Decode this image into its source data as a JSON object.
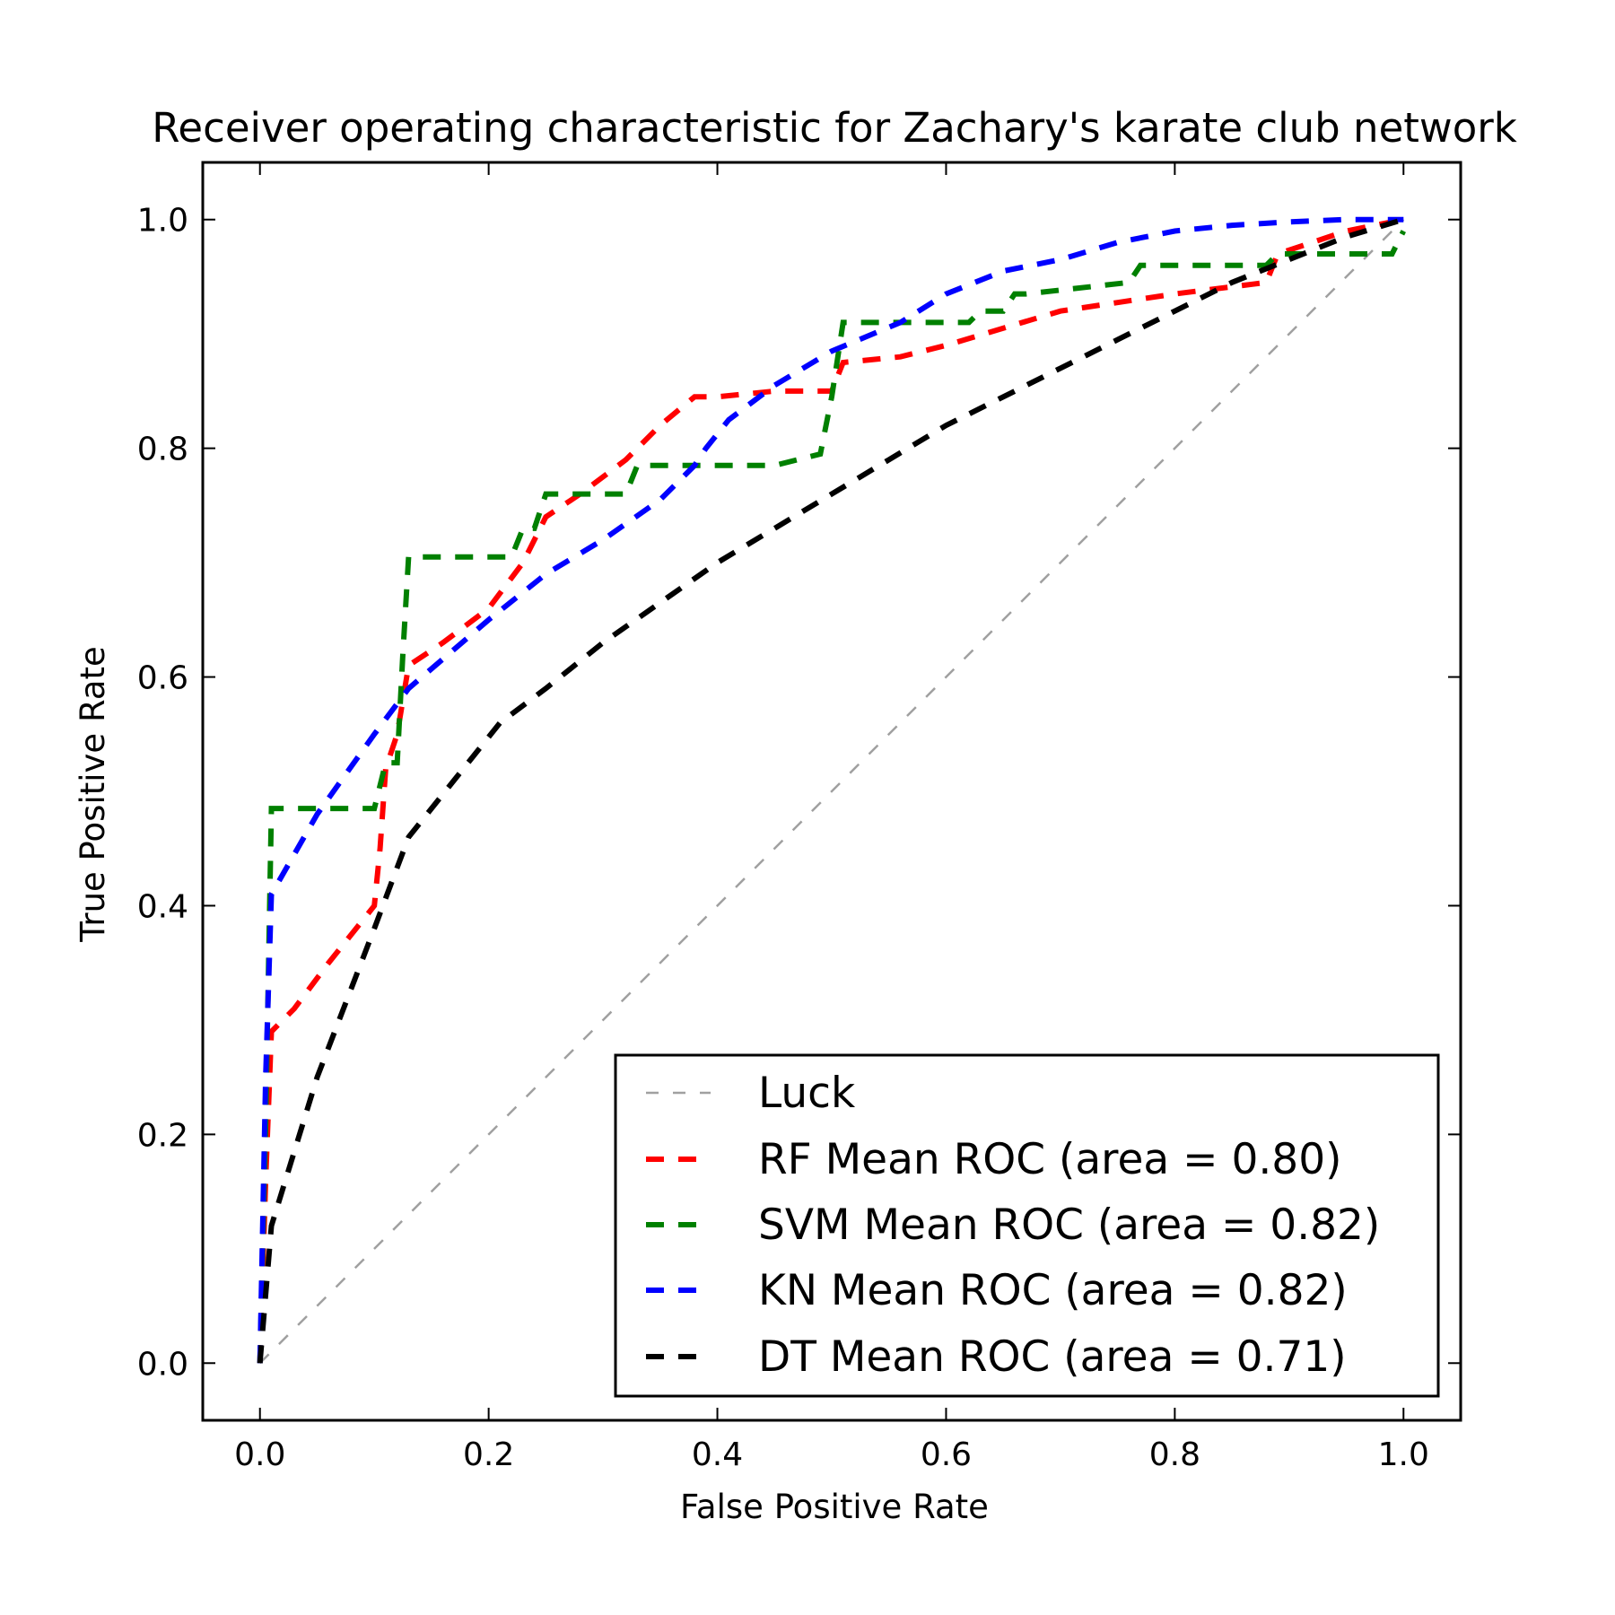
{
  "chart_data": {
    "type": "line",
    "title": "Receiver operating characteristic for Zachary's karate club network",
    "xlabel": "False Positive Rate",
    "ylabel": "True Positive Rate",
    "xlim": [
      -0.05,
      1.05
    ],
    "ylim": [
      -0.05,
      1.05
    ],
    "xticks": [
      "0.0",
      "0.2",
      "0.4",
      "0.6",
      "0.8",
      "1.0"
    ],
    "yticks": [
      "0.0",
      "0.2",
      "0.4",
      "0.6",
      "0.8",
      "1.0"
    ],
    "grid": false,
    "legend_position": "lower-right",
    "series": [
      {
        "name": "Luck",
        "color": "#a0a0a0",
        "style": "thin-dashed",
        "x": [
          0,
          1
        ],
        "y": [
          0,
          1
        ]
      },
      {
        "name": "RF Mean ROC (area = 0.80)",
        "color": "#ff0000",
        "style": "dashed",
        "x": [
          0.0,
          0.005,
          0.01,
          0.03,
          0.06,
          0.1,
          0.105,
          0.11,
          0.12,
          0.13,
          0.16,
          0.2,
          0.23,
          0.25,
          0.28,
          0.32,
          0.35,
          0.38,
          0.4,
          0.45,
          0.5,
          0.51,
          0.56,
          0.6,
          0.7,
          0.8,
          0.88,
          0.89,
          0.95,
          1.0
        ],
        "y": [
          0.0,
          0.16,
          0.29,
          0.31,
          0.35,
          0.4,
          0.45,
          0.52,
          0.55,
          0.61,
          0.63,
          0.66,
          0.7,
          0.74,
          0.76,
          0.79,
          0.82,
          0.845,
          0.845,
          0.85,
          0.85,
          0.875,
          0.88,
          0.89,
          0.92,
          0.935,
          0.945,
          0.97,
          0.99,
          1.0
        ]
      },
      {
        "name": "SVM Mean ROC (area = 0.82)",
        "color": "#008000",
        "style": "dashed",
        "x": [
          0.0,
          0.005,
          0.01,
          0.1,
          0.11,
          0.12,
          0.125,
          0.13,
          0.22,
          0.23,
          0.24,
          0.25,
          0.26,
          0.32,
          0.33,
          0.45,
          0.49,
          0.5,
          0.51,
          0.62,
          0.63,
          0.65,
          0.66,
          0.67,
          0.76,
          0.77,
          0.78,
          0.88,
          0.89,
          0.99,
          1.0
        ],
        "y": [
          0.0,
          0.21,
          0.485,
          0.485,
          0.525,
          0.525,
          0.62,
          0.705,
          0.705,
          0.73,
          0.73,
          0.76,
          0.76,
          0.76,
          0.785,
          0.785,
          0.795,
          0.845,
          0.91,
          0.91,
          0.92,
          0.92,
          0.935,
          0.935,
          0.945,
          0.96,
          0.96,
          0.96,
          0.97,
          0.97,
          0.99
        ]
      },
      {
        "name": "KN Mean ROC (area = 0.82)",
        "color": "#0000ff",
        "style": "dashed",
        "x": [
          0.0,
          0.005,
          0.01,
          0.05,
          0.1,
          0.13,
          0.2,
          0.25,
          0.3,
          0.35,
          0.38,
          0.39,
          0.41,
          0.45,
          0.5,
          0.56,
          0.6,
          0.65,
          0.7,
          0.75,
          0.8,
          0.85,
          0.9,
          0.95,
          1.0
        ],
        "y": [
          0.0,
          0.25,
          0.41,
          0.48,
          0.55,
          0.59,
          0.65,
          0.69,
          0.72,
          0.755,
          0.785,
          0.8,
          0.825,
          0.855,
          0.885,
          0.91,
          0.935,
          0.955,
          0.965,
          0.98,
          0.99,
          0.995,
          0.998,
          1.0,
          1.0
        ]
      },
      {
        "name": "DT Mean ROC (area = 0.71)",
        "color": "#000000",
        "style": "dashed",
        "x": [
          0.0,
          0.01,
          0.05,
          0.1,
          0.13,
          0.17,
          0.21,
          0.25,
          0.3,
          0.35,
          0.4,
          0.45,
          0.5,
          0.55,
          0.6,
          0.65,
          0.7,
          0.75,
          0.8,
          0.85,
          0.9,
          0.95,
          1.0
        ],
        "y": [
          0.0,
          0.12,
          0.25,
          0.38,
          0.46,
          0.51,
          0.56,
          0.59,
          0.63,
          0.665,
          0.7,
          0.73,
          0.76,
          0.79,
          0.82,
          0.845,
          0.87,
          0.895,
          0.92,
          0.945,
          0.965,
          0.985,
          1.0
        ]
      }
    ]
  }
}
